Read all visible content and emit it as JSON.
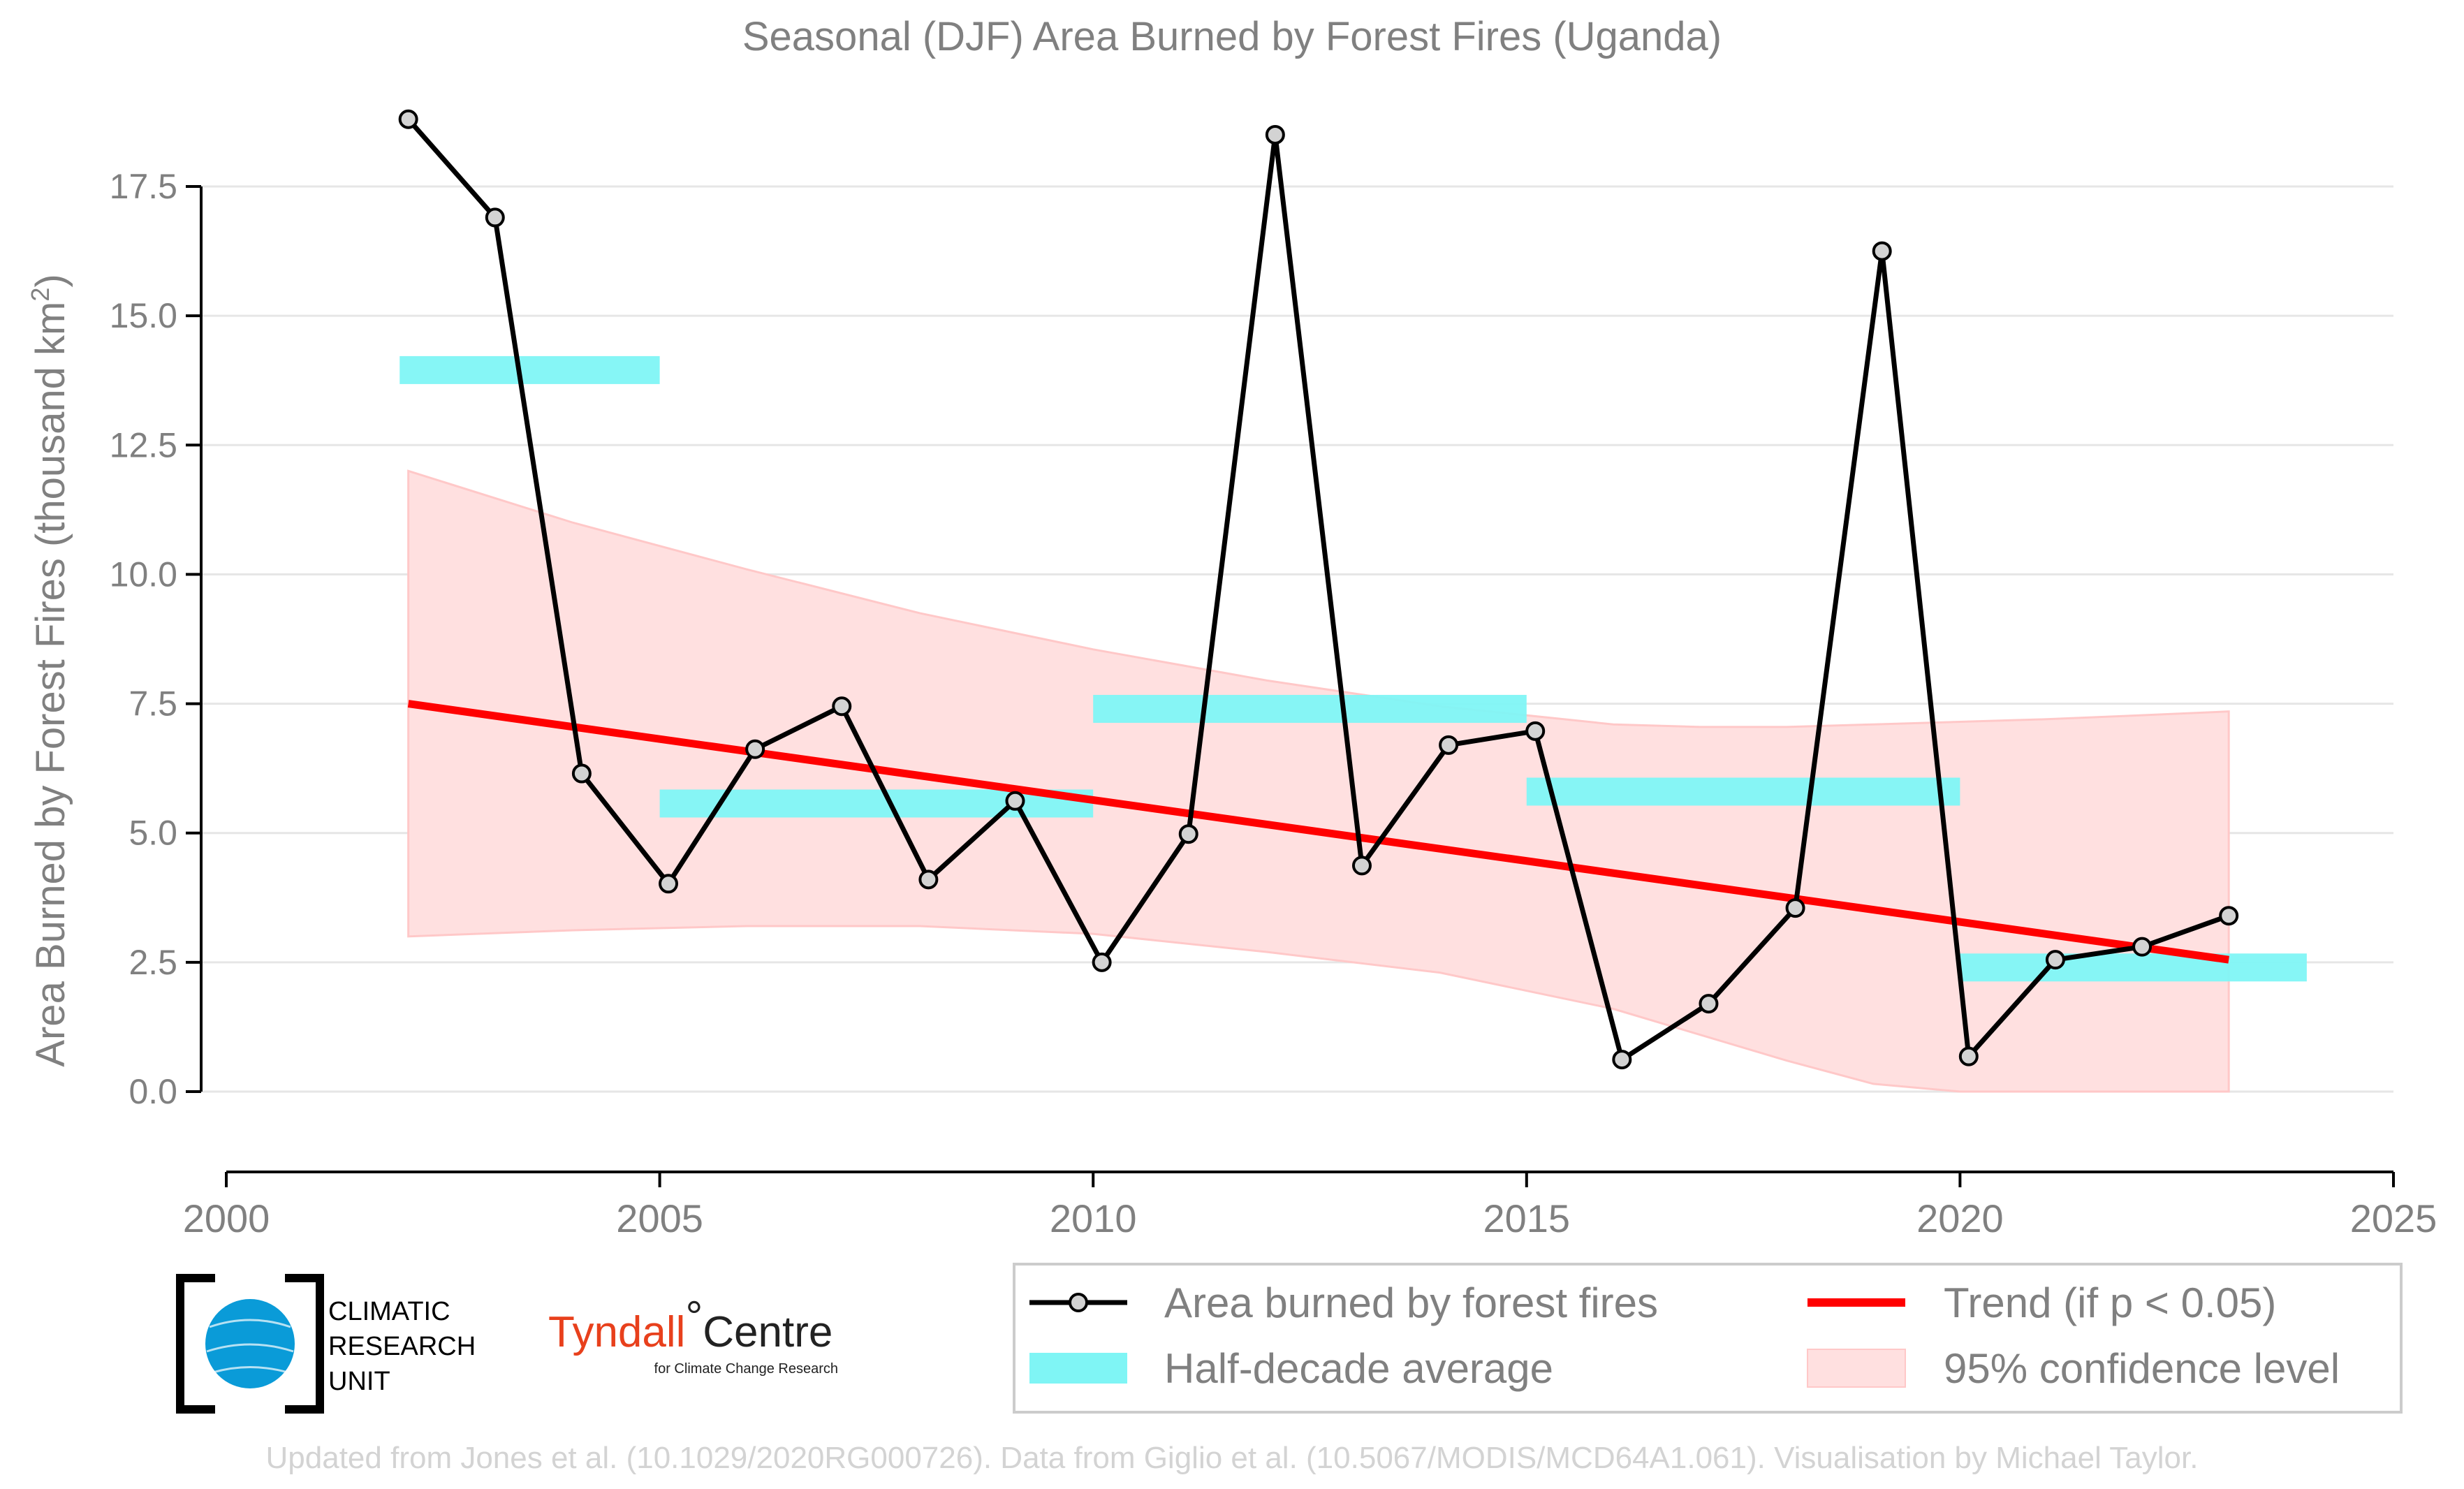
{
  "chart_data": {
    "type": "line",
    "title": "Seasonal (DJF) Area Burned by Forest Fires (Uganda)",
    "ylabel_main": "Area Burned by Forest Fires (thousand km",
    "ylabel_sup": "2",
    "ylabel_close": ")",
    "xlim": [
      2000,
      2025
    ],
    "ylim": [
      -1.5,
      19.3
    ],
    "x_ticks": [
      2000,
      2005,
      2010,
      2015,
      2020,
      2025
    ],
    "x_tick_labels": [
      "2000",
      "2005",
      "2010",
      "2015",
      "2020",
      "2025"
    ],
    "y_ticks": [
      0.0,
      2.5,
      5.0,
      7.5,
      10.0,
      12.5,
      15.0,
      17.5
    ],
    "y_tick_labels": [
      "0.0",
      "2.5",
      "5.0",
      "7.5",
      "10.0",
      "12.5",
      "15.0",
      "17.5"
    ],
    "grid": "horizontal",
    "legend_position": "bottom-right",
    "series": [
      {
        "name": "Area burned by forest fires",
        "color": "#000000",
        "marker_fill": "#d3d3d3",
        "x": [
          2002.1,
          2003.1,
          2004.1,
          2005.1,
          2006.1,
          2007.1,
          2008.1,
          2009.1,
          2010.1,
          2011.1,
          2012.1,
          2013.1,
          2014.1,
          2015.1,
          2016.1,
          2017.1,
          2018.1,
          2019.1,
          2020.1,
          2021.1,
          2022.1,
          2023.1
        ],
        "values": [
          18.8,
          16.9,
          6.15,
          4.02,
          6.62,
          7.45,
          4.1,
          5.62,
          2.5,
          4.98,
          18.5,
          4.37,
          6.7,
          6.97,
          0.62,
          1.7,
          3.55,
          16.25,
          0.68,
          2.55,
          2.8,
          3.4
        ]
      },
      {
        "name": "Half-decade average",
        "color": "#7ff5f5",
        "type": "step",
        "segments": [
          {
            "x0": 2002.0,
            "x1": 2005.0,
            "value": 13.95
          },
          {
            "x0": 2005.0,
            "x1": 2010.0,
            "value": 5.57
          },
          {
            "x0": 2010.0,
            "x1": 2015.0,
            "value": 7.4
          },
          {
            "x0": 2015.0,
            "x1": 2020.0,
            "value": 5.8
          },
          {
            "x0": 2020.0,
            "x1": 2024.0,
            "value": 2.4
          }
        ]
      },
      {
        "name": "Trend (if p < 0.05)",
        "color": "#ff0000",
        "x": [
          2002.1,
          2023.1
        ],
        "values": [
          7.5,
          2.55
        ]
      },
      {
        "name": "95% confidence level",
        "color": "#ffcfcf",
        "x": [
          2002.1,
          2004.0,
          2006.0,
          2008.0,
          2010.0,
          2012.0,
          2014.0,
          2016.0,
          2017.0,
          2018.0,
          2019.0,
          2020.0,
          2021.0,
          2022.0,
          2023.1
        ],
        "upper": [
          12.0,
          11.0,
          10.1,
          9.25,
          8.55,
          7.95,
          7.45,
          7.1,
          7.05,
          7.05,
          7.1,
          7.15,
          7.2,
          7.27,
          7.35
        ],
        "lower": [
          3.0,
          3.12,
          3.2,
          3.2,
          3.05,
          2.7,
          2.3,
          1.6,
          1.1,
          0.6,
          0.15,
          -0.3,
          -0.6,
          -0.9,
          -1.2
        ]
      }
    ]
  },
  "legend": {
    "items": [
      {
        "label": "Area burned by forest fires"
      },
      {
        "label": "Trend (if p < 0.05)"
      },
      {
        "label": "Half-decade average"
      },
      {
        "label": "95% confidence level"
      }
    ]
  },
  "logos": {
    "cru_line1": "CLIMATIC",
    "cru_line2": "RESEARCH",
    "cru_line3": "UNIT",
    "tyndall_word": "Tyndall",
    "tyndall_degree": "°",
    "tyndall_centre": "Centre",
    "tyndall_sub": "for Climate Change Research"
  },
  "source_text": "Updated from Jones et al. (10.1029/2020RG000726). Data from Giglio et al. (10.5067/MODIS/MCD64A1.061). Visualisation by Michael Taylor."
}
